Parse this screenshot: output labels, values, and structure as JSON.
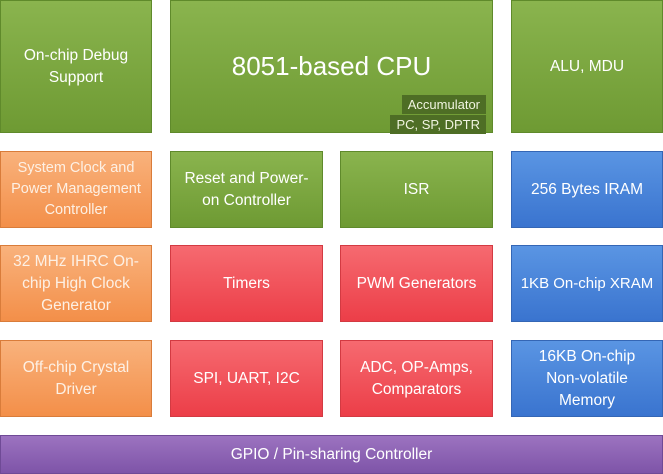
{
  "blocks": {
    "debug": "On-chip Debug Support",
    "cpu": "8051-based CPU",
    "cpu_sub1": "Accumulator",
    "cpu_sub2": "PC, SP, DPTR",
    "alu": "ALU, MDU",
    "clock": "System Clock and Power Management Controller",
    "reset": "Reset and Power-on Controller",
    "isr": "ISR",
    "iram": "256 Bytes IRAM",
    "ihrc": "32 MHz IHRC On-chip High Clock Generator",
    "timers": "Timers",
    "pwm": "PWM Generators",
    "xram": "1KB On-chip XRAM",
    "crystal": "Off-chip Crystal Driver",
    "serial": "SPI, UART, I2C",
    "adc": "ADC, OP-Amps, Comparators",
    "nvm": "16KB On-chip Non-volatile Memory",
    "gpio": "GPIO / Pin-sharing Controller"
  },
  "colors": {
    "green": "#7aa640",
    "orange": "#f5a064",
    "red": "#f04f58",
    "blue": "#4a84da",
    "purple": "#8c63b4"
  }
}
